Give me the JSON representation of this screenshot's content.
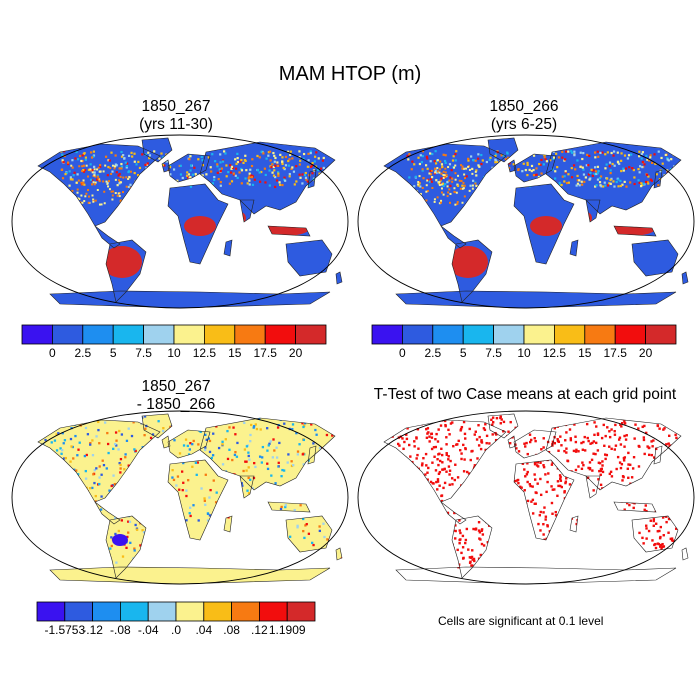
{
  "title": "MAM HTOP (m)",
  "panels": {
    "tl": {
      "title_line1": "1850_267",
      "title_line2": "(yrs 11-30)"
    },
    "tr": {
      "title_line1": "1850_266",
      "title_line2": "(yrs 6-25)"
    },
    "bl": {
      "title_line1": "1850_267",
      "title_line2": "- 1850_266"
    },
    "br": {
      "title_line1": "T-Test of two Case means at each grid point"
    }
  },
  "colorbar_top": {
    "colors": [
      "#3a12f0",
      "#2e5be0",
      "#1e8ef0",
      "#19b6ee",
      "#9fd2ee",
      "#fbf28e",
      "#f9bd17",
      "#f77a12",
      "#f20d0d",
      "#d4292a"
    ],
    "labels": [
      "0",
      "2.5",
      "5",
      "7.5",
      "10",
      "12.5",
      "15",
      "17.5",
      "20"
    ]
  },
  "colorbar_bottom": {
    "colors": [
      "#3a12f0",
      "#2e5be0",
      "#1e8ef0",
      "#19b6ee",
      "#9fd2ee",
      "#fbf28e",
      "#f9bd17",
      "#f77a12",
      "#f20d0d",
      "#d4292a"
    ],
    "labels": [
      "-1.5753",
      "-.12",
      "-.08",
      "-.04",
      ".0",
      ".04",
      ".08",
      ".12",
      "1.1909"
    ]
  },
  "significance_note": "Cells are significant at 0.1 level"
}
